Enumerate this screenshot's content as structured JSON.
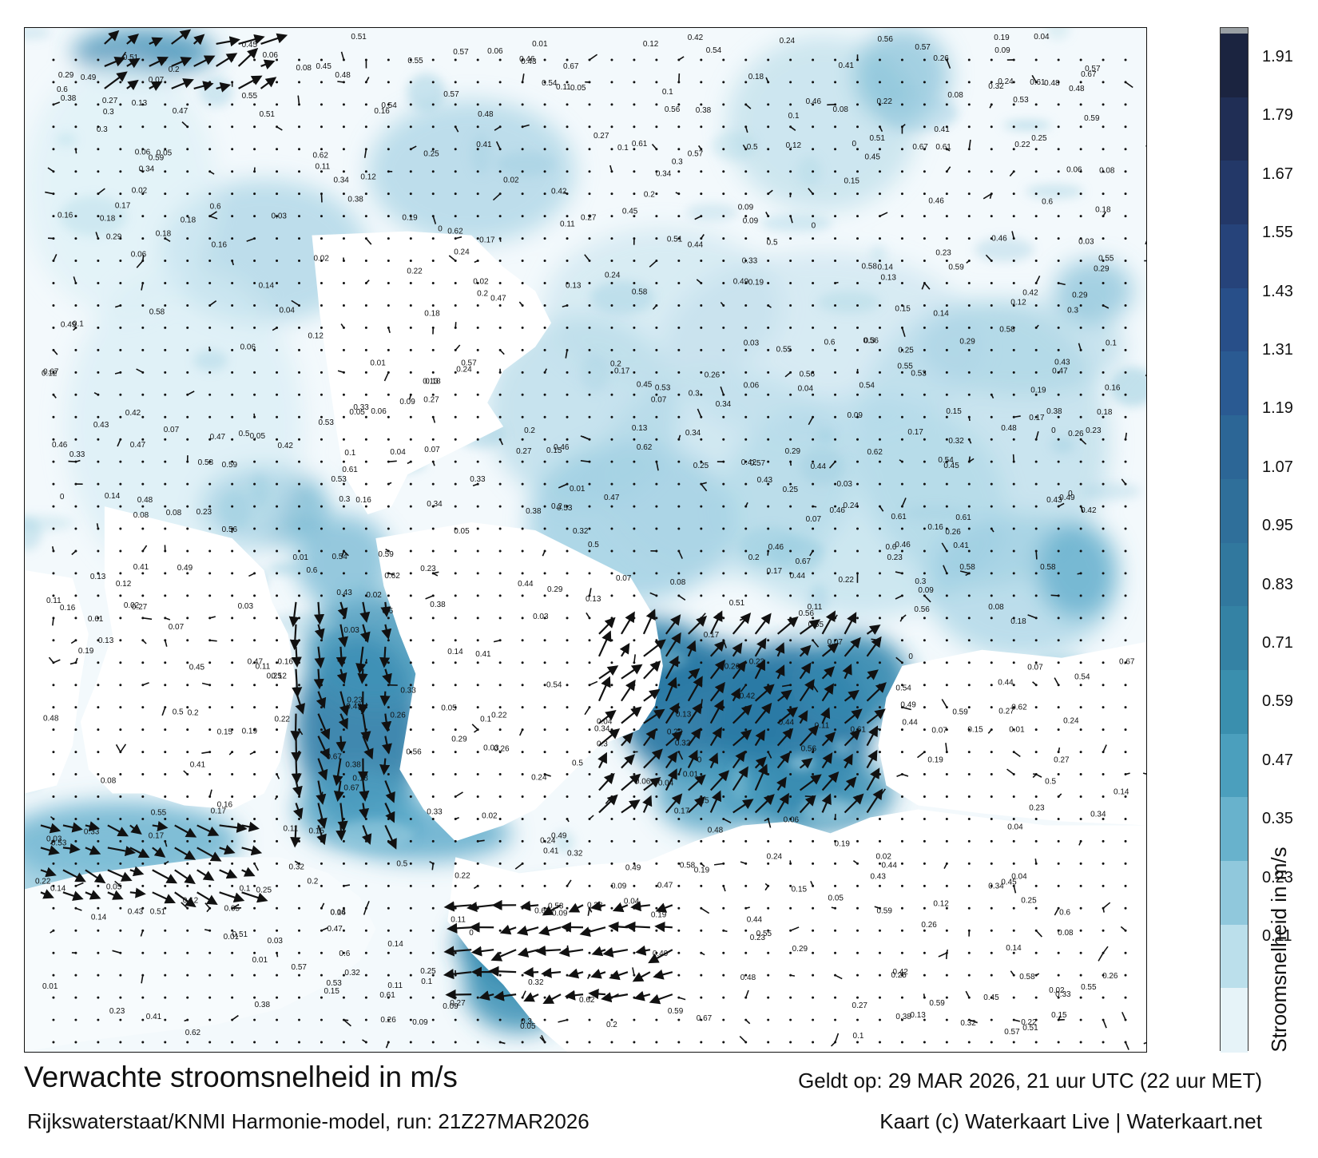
{
  "title": "Verwachte stroomsnelheid in m/s",
  "subtitle": "Rijkswaterstaat/KNMI Harmonie-model, run: 21Z27MAR2026",
  "valid_time": "Geldt op: 29 MAR 2026, 21 uur UTC (22 uur MET)",
  "credit": "Kaart (c) Waterkaart Live | Waterkaart.net",
  "colorbar": {
    "title": "Stroomsnelheid in m/s",
    "ticks": [
      "1.91",
      "1.79",
      "1.67",
      "1.55",
      "1.43",
      "1.31",
      "1.19",
      "1.07",
      "0.95",
      "0.83",
      "0.71",
      "0.59",
      "0.47",
      "0.35",
      "0.23",
      "0.11"
    ],
    "colors": [
      "#1b2440",
      "#202e55",
      "#233868",
      "#26437a",
      "#284f89",
      "#2a5a92",
      "#2c6696",
      "#2f6f9a",
      "#31789e",
      "#3482a4",
      "#3a8fae",
      "#4b9fbd",
      "#68b2cc",
      "#90c8dc",
      "#bbdfeb",
      "#e6f3f8"
    ]
  },
  "map": {
    "speed_labels": [
      {
        "t": "0.13"
      },
      {
        "t": "0.14"
      },
      {
        "t": "0.15"
      },
      {
        "t": "0.11"
      },
      {
        "t": "0.09"
      },
      {
        "t": "0.08"
      },
      {
        "t": "0.07"
      },
      {
        "t": "0.06"
      },
      {
        "t": "0.05"
      },
      {
        "t": "0.04"
      },
      {
        "t": "0.19"
      },
      {
        "t": "0.18"
      },
      {
        "t": "0.17"
      },
      {
        "t": "0.16"
      },
      {
        "t": "0.03"
      },
      {
        "t": "0.12"
      },
      {
        "t": "0.1"
      },
      {
        "t": "0.2"
      },
      {
        "t": "0.22"
      },
      {
        "t": "0.24"
      },
      {
        "t": "0.26"
      },
      {
        "t": "0.27"
      },
      {
        "t": "0.23"
      },
      {
        "t": "0.25"
      },
      {
        "t": "0.3"
      },
      {
        "t": "0.33"
      },
      {
        "t": "0.34"
      },
      {
        "t": "0.29"
      },
      {
        "t": "0.32"
      },
      {
        "t": "0.38"
      },
      {
        "t": "0.42"
      },
      {
        "t": "0.41"
      },
      {
        "t": "0.45"
      },
      {
        "t": "0.47"
      },
      {
        "t": "0.48"
      },
      {
        "t": "0.46"
      },
      {
        "t": "0.43"
      },
      {
        "t": "0.44"
      },
      {
        "t": "0.49"
      },
      {
        "t": "0.5"
      },
      {
        "t": "0.51"
      },
      {
        "t": "0.53"
      },
      {
        "t": "0.54"
      },
      {
        "t": "0.55"
      },
      {
        "t": "0.56"
      },
      {
        "t": "0.57"
      },
      {
        "t": "0.58"
      },
      {
        "t": "0.59"
      },
      {
        "t": "0.6"
      },
      {
        "t": "0.61"
      },
      {
        "t": "0.62"
      },
      {
        "t": "0.67"
      },
      {
        "t": "0.02"
      },
      {
        "t": "0.01"
      },
      {
        "t": "0"
      }
    ]
  }
}
